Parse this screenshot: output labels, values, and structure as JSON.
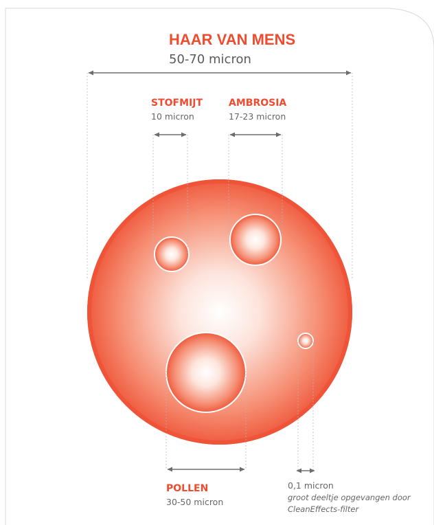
{
  "colors": {
    "accent": "#ef4b2f",
    "text_muted": "#5a5a5a",
    "circle_edge": "#ef5338",
    "guide": "#b5b5b5",
    "arrow": "#6e6e6e"
  },
  "diagram": {
    "human_hair": {
      "name": "HAAR VAN MENS",
      "size": "50-70 micron"
    },
    "dust_mite": {
      "name": "STOFMIJT",
      "size": "10 micron"
    },
    "ragweed": {
      "name": "AMBROSIA",
      "size": "17-23 micron"
    },
    "pollen": {
      "name": "POLLEN",
      "size": "30-50 micron"
    },
    "smallest": {
      "size": "0,1 micron",
      "note_line1": "groot deeltje opgevangen door",
      "note_line2": "CleanEffects-filter"
    }
  }
}
